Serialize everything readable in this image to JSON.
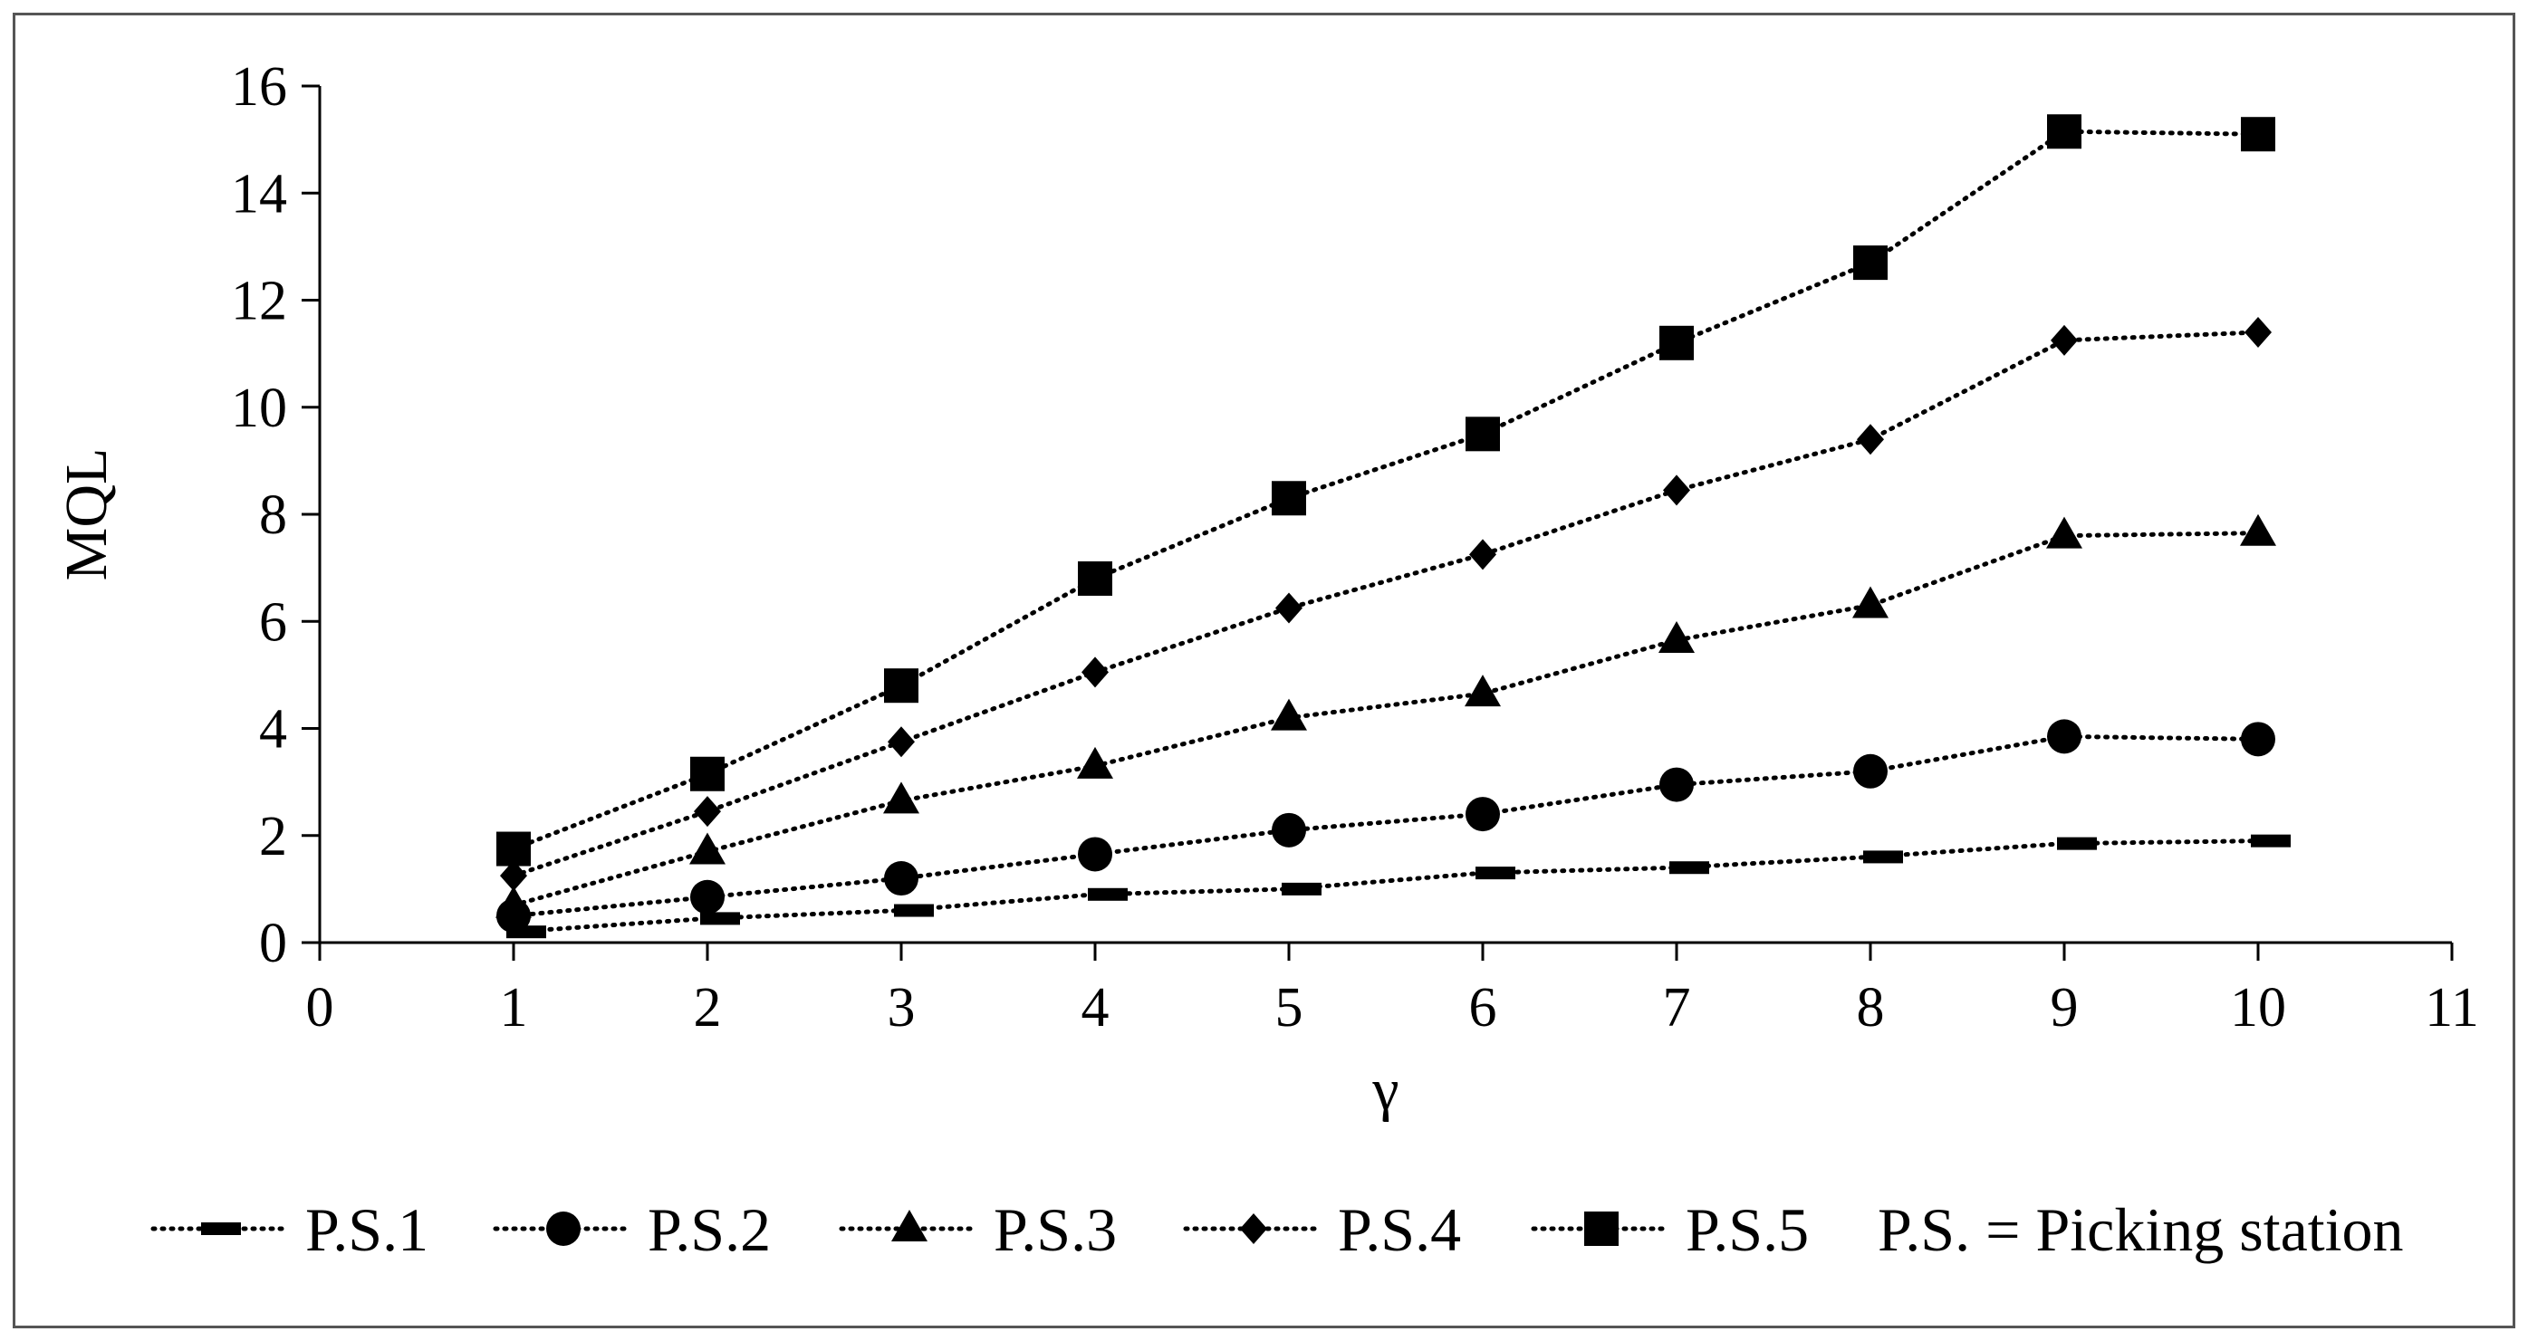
{
  "chart_data": {
    "type": "line",
    "title": "",
    "xlabel": "γ",
    "ylabel": "MQL",
    "xlim": [
      0,
      11
    ],
    "ylim": [
      0,
      16
    ],
    "xticks": [
      0,
      1,
      2,
      3,
      4,
      5,
      6,
      7,
      8,
      9,
      10,
      11
    ],
    "yticks": [
      0,
      2,
      4,
      6,
      8,
      10,
      12,
      14,
      16
    ],
    "grid": false,
    "legend_position": "bottom",
    "line_style": "dotted",
    "line_color": "#000000",
    "x": [
      1,
      2,
      3,
      4,
      5,
      6,
      7,
      8,
      9,
      10
    ],
    "series": [
      {
        "name": "P.S.1",
        "marker": "dash",
        "values": [
          0.2,
          0.45,
          0.6,
          0.9,
          1.0,
          1.3,
          1.4,
          1.6,
          1.85,
          1.9
        ]
      },
      {
        "name": "P.S.2",
        "marker": "circle",
        "values": [
          0.5,
          0.85,
          1.2,
          1.65,
          2.1,
          2.4,
          2.95,
          3.2,
          3.85,
          3.8
        ]
      },
      {
        "name": "P.S.3",
        "marker": "triangle",
        "values": [
          0.7,
          1.7,
          2.65,
          3.3,
          4.2,
          4.65,
          5.65,
          6.3,
          7.6,
          7.65
        ]
      },
      {
        "name": "P.S.4",
        "marker": "diamond",
        "values": [
          1.25,
          2.45,
          3.75,
          5.05,
          6.25,
          7.25,
          8.45,
          9.4,
          11.25,
          11.4
        ]
      },
      {
        "name": "P.S.5",
        "marker": "square",
        "values": [
          1.75,
          3.15,
          4.8,
          6.8,
          8.3,
          9.5,
          11.2,
          12.7,
          15.15,
          15.1
        ]
      }
    ],
    "legend_note": "P.S. = Picking station"
  }
}
